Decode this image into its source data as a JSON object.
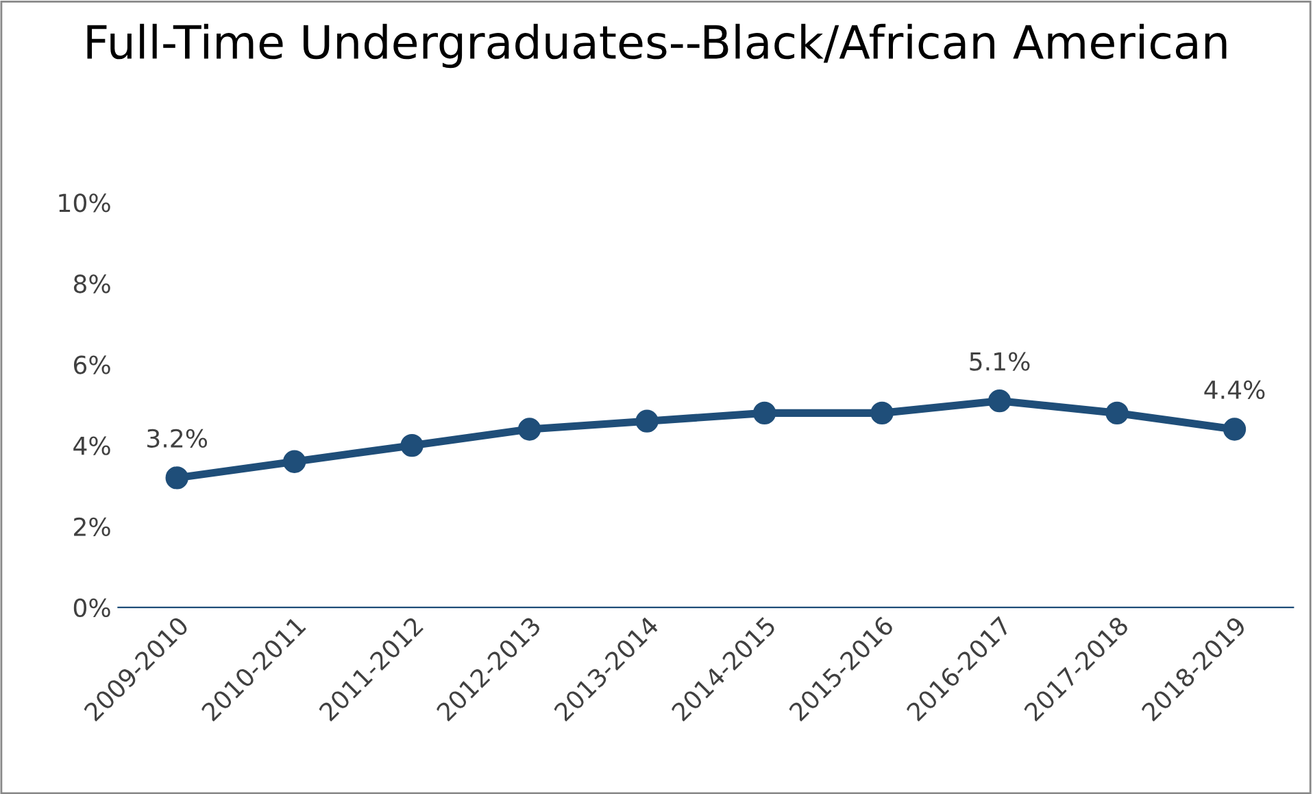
{
  "chart_data": {
    "type": "line",
    "title": "Full-Time Undergraduates--Black/African American",
    "categories": [
      "2009-2010",
      "2010-2011",
      "2011-2012",
      "2012-2013",
      "2013-2014",
      "2014-2015",
      "2015-2016",
      "2016-2017",
      "2017-2018",
      "2018-2019"
    ],
    "series": [
      {
        "color": "#1f4e79",
        "values": [
          3.2,
          3.6,
          4.0,
          4.4,
          4.6,
          4.8,
          4.8,
          5.1,
          4.8,
          4.4
        ],
        "value_labels": [
          "3.2%",
          null,
          null,
          null,
          null,
          null,
          null,
          "5.1%",
          null,
          "4.4%"
        ]
      }
    ],
    "ylim": [
      0,
      10
    ],
    "yticks": [
      {
        "value": 0,
        "label": "0%"
      },
      {
        "value": 2,
        "label": "2%"
      },
      {
        "value": 4,
        "label": "4%"
      },
      {
        "value": 6,
        "label": "6%"
      },
      {
        "value": 8,
        "label": "8%"
      },
      {
        "value": 10,
        "label": "10%"
      }
    ],
    "marker": "circle",
    "line_style": "solid",
    "grid": false,
    "legend": false
  }
}
